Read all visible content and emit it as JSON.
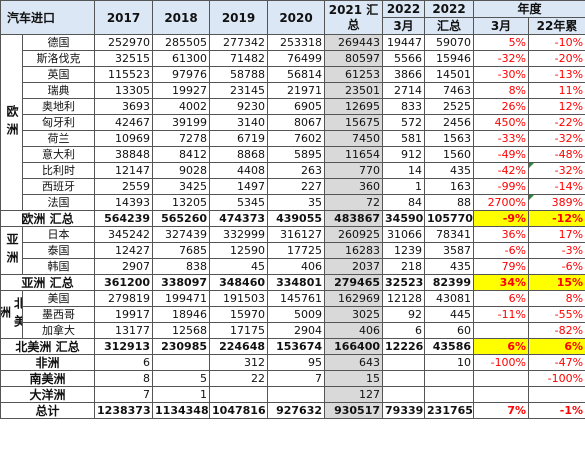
{
  "header": {
    "title": "汽车进口",
    "cols": [
      "2017",
      "2018",
      "2019",
      "2020"
    ],
    "sum2021": "2021 汇总",
    "y2022a": "2022",
    "m3": "3月",
    "y2022b": "2022",
    "sum": "汇总",
    "year": "年度",
    "m3b": "3月",
    "cum22": "22年累"
  },
  "regions": {
    "europe": "欧洲",
    "asia": "亚洲",
    "namerica": "北美洲"
  },
  "europe": [
    {
      "name": "德国",
      "v": [
        "252970",
        "285505",
        "277342",
        "253318",
        "269443",
        "19447",
        "59070",
        "5%",
        "-10%"
      ]
    },
    {
      "name": "斯洛伐克",
      "v": [
        "32515",
        "61300",
        "71482",
        "76499",
        "80597",
        "5566",
        "15946",
        "-32%",
        "-20%"
      ]
    },
    {
      "name": "英国",
      "v": [
        "115523",
        "97976",
        "58788",
        "56814",
        "61253",
        "3866",
        "14501",
        "-30%",
        "-13%"
      ]
    },
    {
      "name": "瑞典",
      "v": [
        "13305",
        "19927",
        "23145",
        "21971",
        "23501",
        "2714",
        "7463",
        "8%",
        "11%"
      ]
    },
    {
      "name": "奥地利",
      "v": [
        "3693",
        "4002",
        "9230",
        "6905",
        "12695",
        "833",
        "2525",
        "26%",
        "12%"
      ]
    },
    {
      "name": "匈牙利",
      "v": [
        "42467",
        "39199",
        "3140",
        "8067",
        "15675",
        "572",
        "2456",
        "450%",
        "-22%"
      ]
    },
    {
      "name": "荷兰",
      "v": [
        "10969",
        "7278",
        "6719",
        "7602",
        "7450",
        "581",
        "1563",
        "-33%",
        "-32%"
      ]
    },
    {
      "name": "意大利",
      "v": [
        "38848",
        "8412",
        "8868",
        "5895",
        "11654",
        "912",
        "1560",
        "-49%",
        "-48%"
      ]
    },
    {
      "name": "比利时",
      "v": [
        "12147",
        "9028",
        "4408",
        "263",
        "770",
        "14",
        "435",
        "-42%",
        "-32%"
      ]
    },
    {
      "name": "西班牙",
      "v": [
        "2559",
        "3425",
        "1497",
        "227",
        "360",
        "1",
        "163",
        "-99%",
        "-14%"
      ]
    },
    {
      "name": "法国",
      "v": [
        "14393",
        "13205",
        "5345",
        "35",
        "72",
        "84",
        "88",
        "2700%",
        "389%"
      ]
    }
  ],
  "europe_total": {
    "label": "欧洲 汇总",
    "v": [
      "564239",
      "565260",
      "474373",
      "439055",
      "483867",
      "34590",
      "105770",
      "-9%",
      "-12%"
    ]
  },
  "asia": [
    {
      "name": "日本",
      "v": [
        "345242",
        "327439",
        "332999",
        "316127",
        "260925",
        "31066",
        "78341",
        "36%",
        "17%"
      ]
    },
    {
      "name": "泰国",
      "v": [
        "12427",
        "7685",
        "12590",
        "17725",
        "16283",
        "1239",
        "3587",
        "-6%",
        "-3%"
      ]
    },
    {
      "name": "韩国",
      "v": [
        "2907",
        "838",
        "45",
        "406",
        "2037",
        "218",
        "435",
        "79%",
        "-6%"
      ]
    }
  ],
  "asia_total": {
    "label": "亚洲 汇总",
    "v": [
      "361200",
      "338097",
      "348460",
      "334801",
      "279465",
      "32523",
      "82399",
      "34%",
      "15%"
    ]
  },
  "namerica": [
    {
      "name": "美国",
      "v": [
        "279819",
        "199471",
        "191503",
        "145761",
        "162969",
        "12128",
        "43081",
        "6%",
        "8%"
      ]
    },
    {
      "name": "墨西哥",
      "v": [
        "19917",
        "18946",
        "15970",
        "5009",
        "3025",
        "92",
        "445",
        "-11%",
        "-55%"
      ]
    },
    {
      "name": "加拿大",
      "v": [
        "13177",
        "12568",
        "17175",
        "2904",
        "406",
        "6",
        "60",
        "",
        "-82%"
      ]
    }
  ],
  "namerica_total": {
    "label": "北美洲 汇总",
    "v": [
      "312913",
      "230985",
      "224648",
      "153674",
      "166400",
      "12226",
      "43586",
      "6%",
      "6%"
    ]
  },
  "others": [
    {
      "label": "非洲",
      "v": [
        "6",
        "",
        "312",
        "95",
        "643",
        "",
        "10",
        "-100%",
        "-47%"
      ]
    },
    {
      "label": "南美洲",
      "v": [
        "8",
        "5",
        "22",
        "7",
        "15",
        "",
        "",
        "",
        "-100%"
      ]
    },
    {
      "label": "大洋洲",
      "v": [
        "7",
        "1",
        "",
        "",
        "127",
        "",
        "",
        "",
        ""
      ]
    }
  ],
  "grand_total": {
    "label": "总计",
    "v": [
      "1238373",
      "1134348",
      "1047816",
      "927632",
      "930517",
      "79339",
      "231765",
      "7%",
      "-1%"
    ]
  }
}
